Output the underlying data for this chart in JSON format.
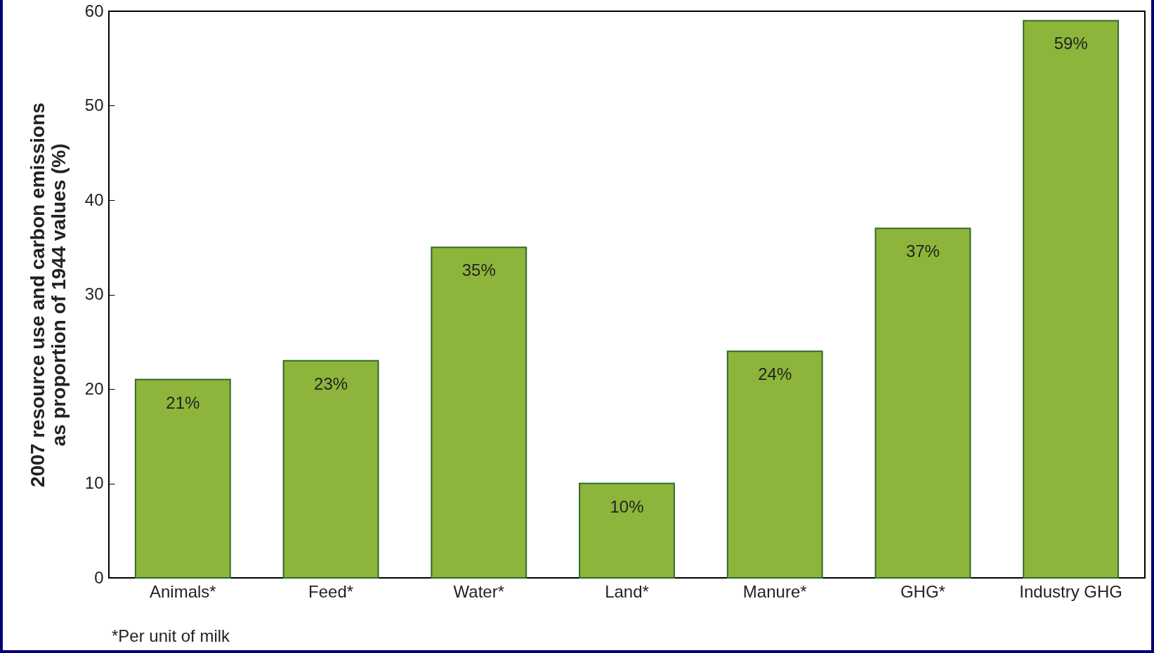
{
  "chart_data": {
    "type": "bar",
    "ylabel": "2007 resource use and carbon emissions\nas proportion of 1944 values (%)",
    "categories": [
      "Animals*",
      "Feed*",
      "Water*",
      "Land*",
      "Manure*",
      "GHG*",
      "Industry GHG"
    ],
    "values": [
      21,
      23,
      35,
      10,
      24,
      37,
      59
    ],
    "value_labels": [
      "21%",
      "23%",
      "35%",
      "10%",
      "24%",
      "37%",
      "59%"
    ],
    "color": "#8db53b",
    "ylim": [
      0,
      60
    ],
    "yticks": [
      0,
      10,
      20,
      30,
      40,
      50,
      60
    ],
    "annotations": [
      "*Per unit of milk"
    ]
  }
}
